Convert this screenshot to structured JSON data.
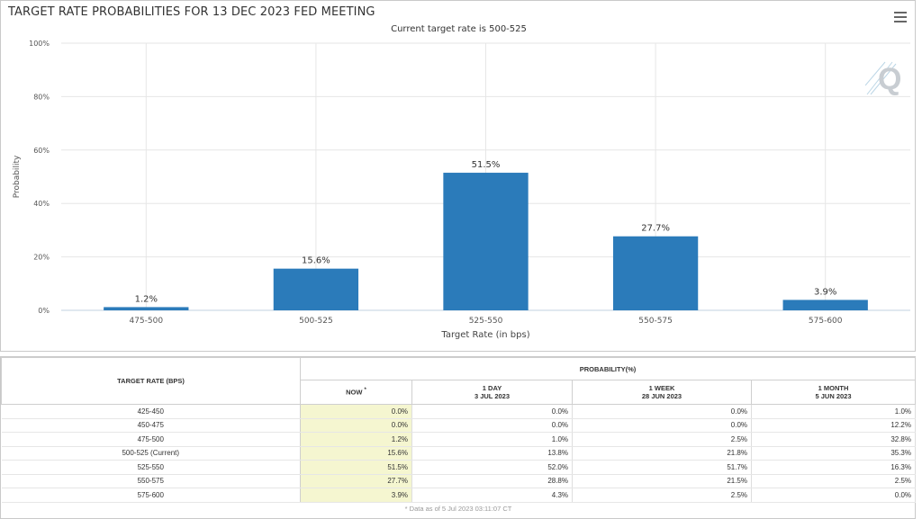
{
  "chart_title": "TARGET RATE PROBABILITIES FOR 13 DEC 2023 FED MEETING",
  "colors": {
    "bar": "#2b7bba",
    "now_column": "#f5f6d0"
  },
  "icons": {
    "menu": "menu-icon",
    "watermark": "logo-q-icon"
  },
  "chart_data": {
    "type": "bar",
    "title": "TARGET RATE PROBABILITIES FOR 13 DEC 2023 FED MEETING",
    "subtitle": "Current target rate is 500-525",
    "xlabel": "Target Rate (in bps)",
    "ylabel": "Probability",
    "categories": [
      "475-500",
      "500-525",
      "525-550",
      "550-575",
      "575-600"
    ],
    "values": [
      1.2,
      15.6,
      51.5,
      27.7,
      3.9
    ],
    "data_labels": [
      "1.2%",
      "15.6%",
      "51.5%",
      "27.7%",
      "3.9%"
    ],
    "ylim": [
      0,
      100
    ],
    "yticks": [
      "0%",
      "20%",
      "40%",
      "60%",
      "80%",
      "100%"
    ],
    "grid": true
  },
  "table": {
    "header_rate": "TARGET RATE (BPS)",
    "header_prob": "PROBABILITY(%)",
    "columns": [
      {
        "label": "NOW",
        "sup": "*",
        "date": ""
      },
      {
        "label": "1 DAY",
        "date": "3 JUL 2023"
      },
      {
        "label": "1 WEEK",
        "date": "28 JUN 2023"
      },
      {
        "label": "1 MONTH",
        "date": "5 JUN 2023"
      }
    ],
    "rows": [
      {
        "rate": "425-450",
        "now": "0.0%",
        "day": "0.0%",
        "week": "0.0%",
        "month": "1.0%"
      },
      {
        "rate": "450-475",
        "now": "0.0%",
        "day": "0.0%",
        "week": "0.0%",
        "month": "12.2%"
      },
      {
        "rate": "475-500",
        "now": "1.2%",
        "day": "1.0%",
        "week": "2.5%",
        "month": "32.8%"
      },
      {
        "rate": "500-525 (Current)",
        "now": "15.6%",
        "day": "13.8%",
        "week": "21.8%",
        "month": "35.3%"
      },
      {
        "rate": "525-550",
        "now": "51.5%",
        "day": "52.0%",
        "week": "51.7%",
        "month": "16.3%"
      },
      {
        "rate": "550-575",
        "now": "27.7%",
        "day": "28.8%",
        "week": "21.5%",
        "month": "2.5%"
      },
      {
        "rate": "575-600",
        "now": "3.9%",
        "day": "4.3%",
        "week": "2.5%",
        "month": "0.0%"
      }
    ],
    "footnote": "* Data as of 5 Jul 2023 03:11:07 CT"
  }
}
